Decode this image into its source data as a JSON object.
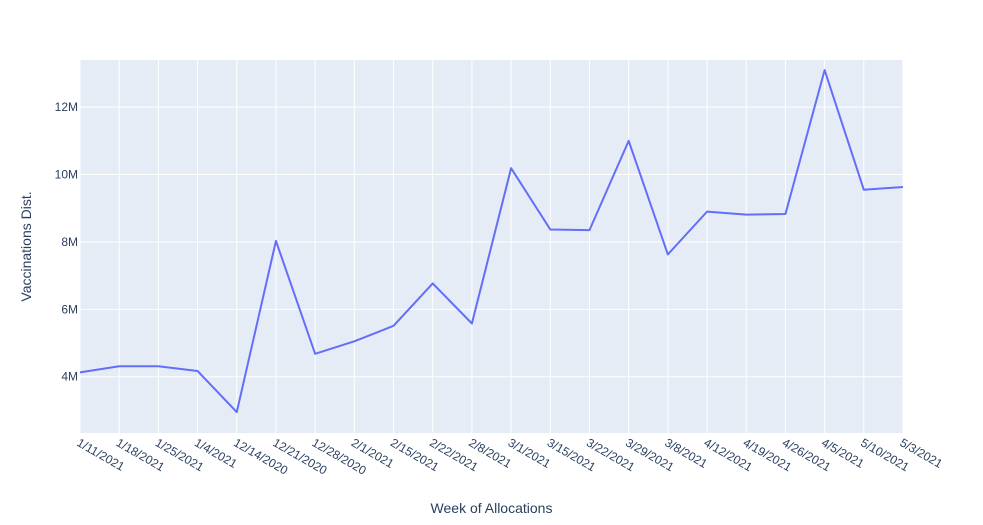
{
  "chart_data": {
    "type": "line",
    "xlabel": "Week of Allocations",
    "ylabel": "Vaccinations Dist.",
    "categories": [
      "1/11/2021",
      "1/18/2021",
      "1/25/2021",
      "1/4/2021",
      "12/14/2020",
      "12/21/2020",
      "12/28/2020",
      "2/1/2021",
      "2/15/2021",
      "2/22/2021",
      "2/8/2021",
      "3/1/2021",
      "3/15/2021",
      "3/22/2021",
      "3/29/2021",
      "3/8/2021",
      "4/12/2021",
      "4/19/2021",
      "4/26/2021",
      "4/5/2021",
      "5/10/2021",
      "5/3/2021"
    ],
    "series": [
      {
        "values": [
          4.13,
          4.31,
          4.31,
          4.17,
          2.95,
          8.03,
          4.68,
          5.05,
          5.51,
          6.77,
          5.58,
          10.19,
          8.37,
          8.35,
          11.0,
          7.63,
          8.9,
          8.81,
          8.83,
          13.1,
          9.55,
          9.63
        ],
        "color": "#636efa"
      }
    ],
    "y_unit": "millions",
    "ylim": [
      2.33,
      13.4
    ],
    "yticks": [
      {
        "value": 4,
        "label": "4M"
      },
      {
        "value": 6,
        "label": "6M"
      },
      {
        "value": 8,
        "label": "8M"
      },
      {
        "value": 10,
        "label": "10M"
      },
      {
        "value": 12,
        "label": "12M"
      }
    ],
    "grid": true,
    "plot_background": "#e5ecf6",
    "grid_color": "#ffffff",
    "text_color": "#2a3f5f"
  }
}
